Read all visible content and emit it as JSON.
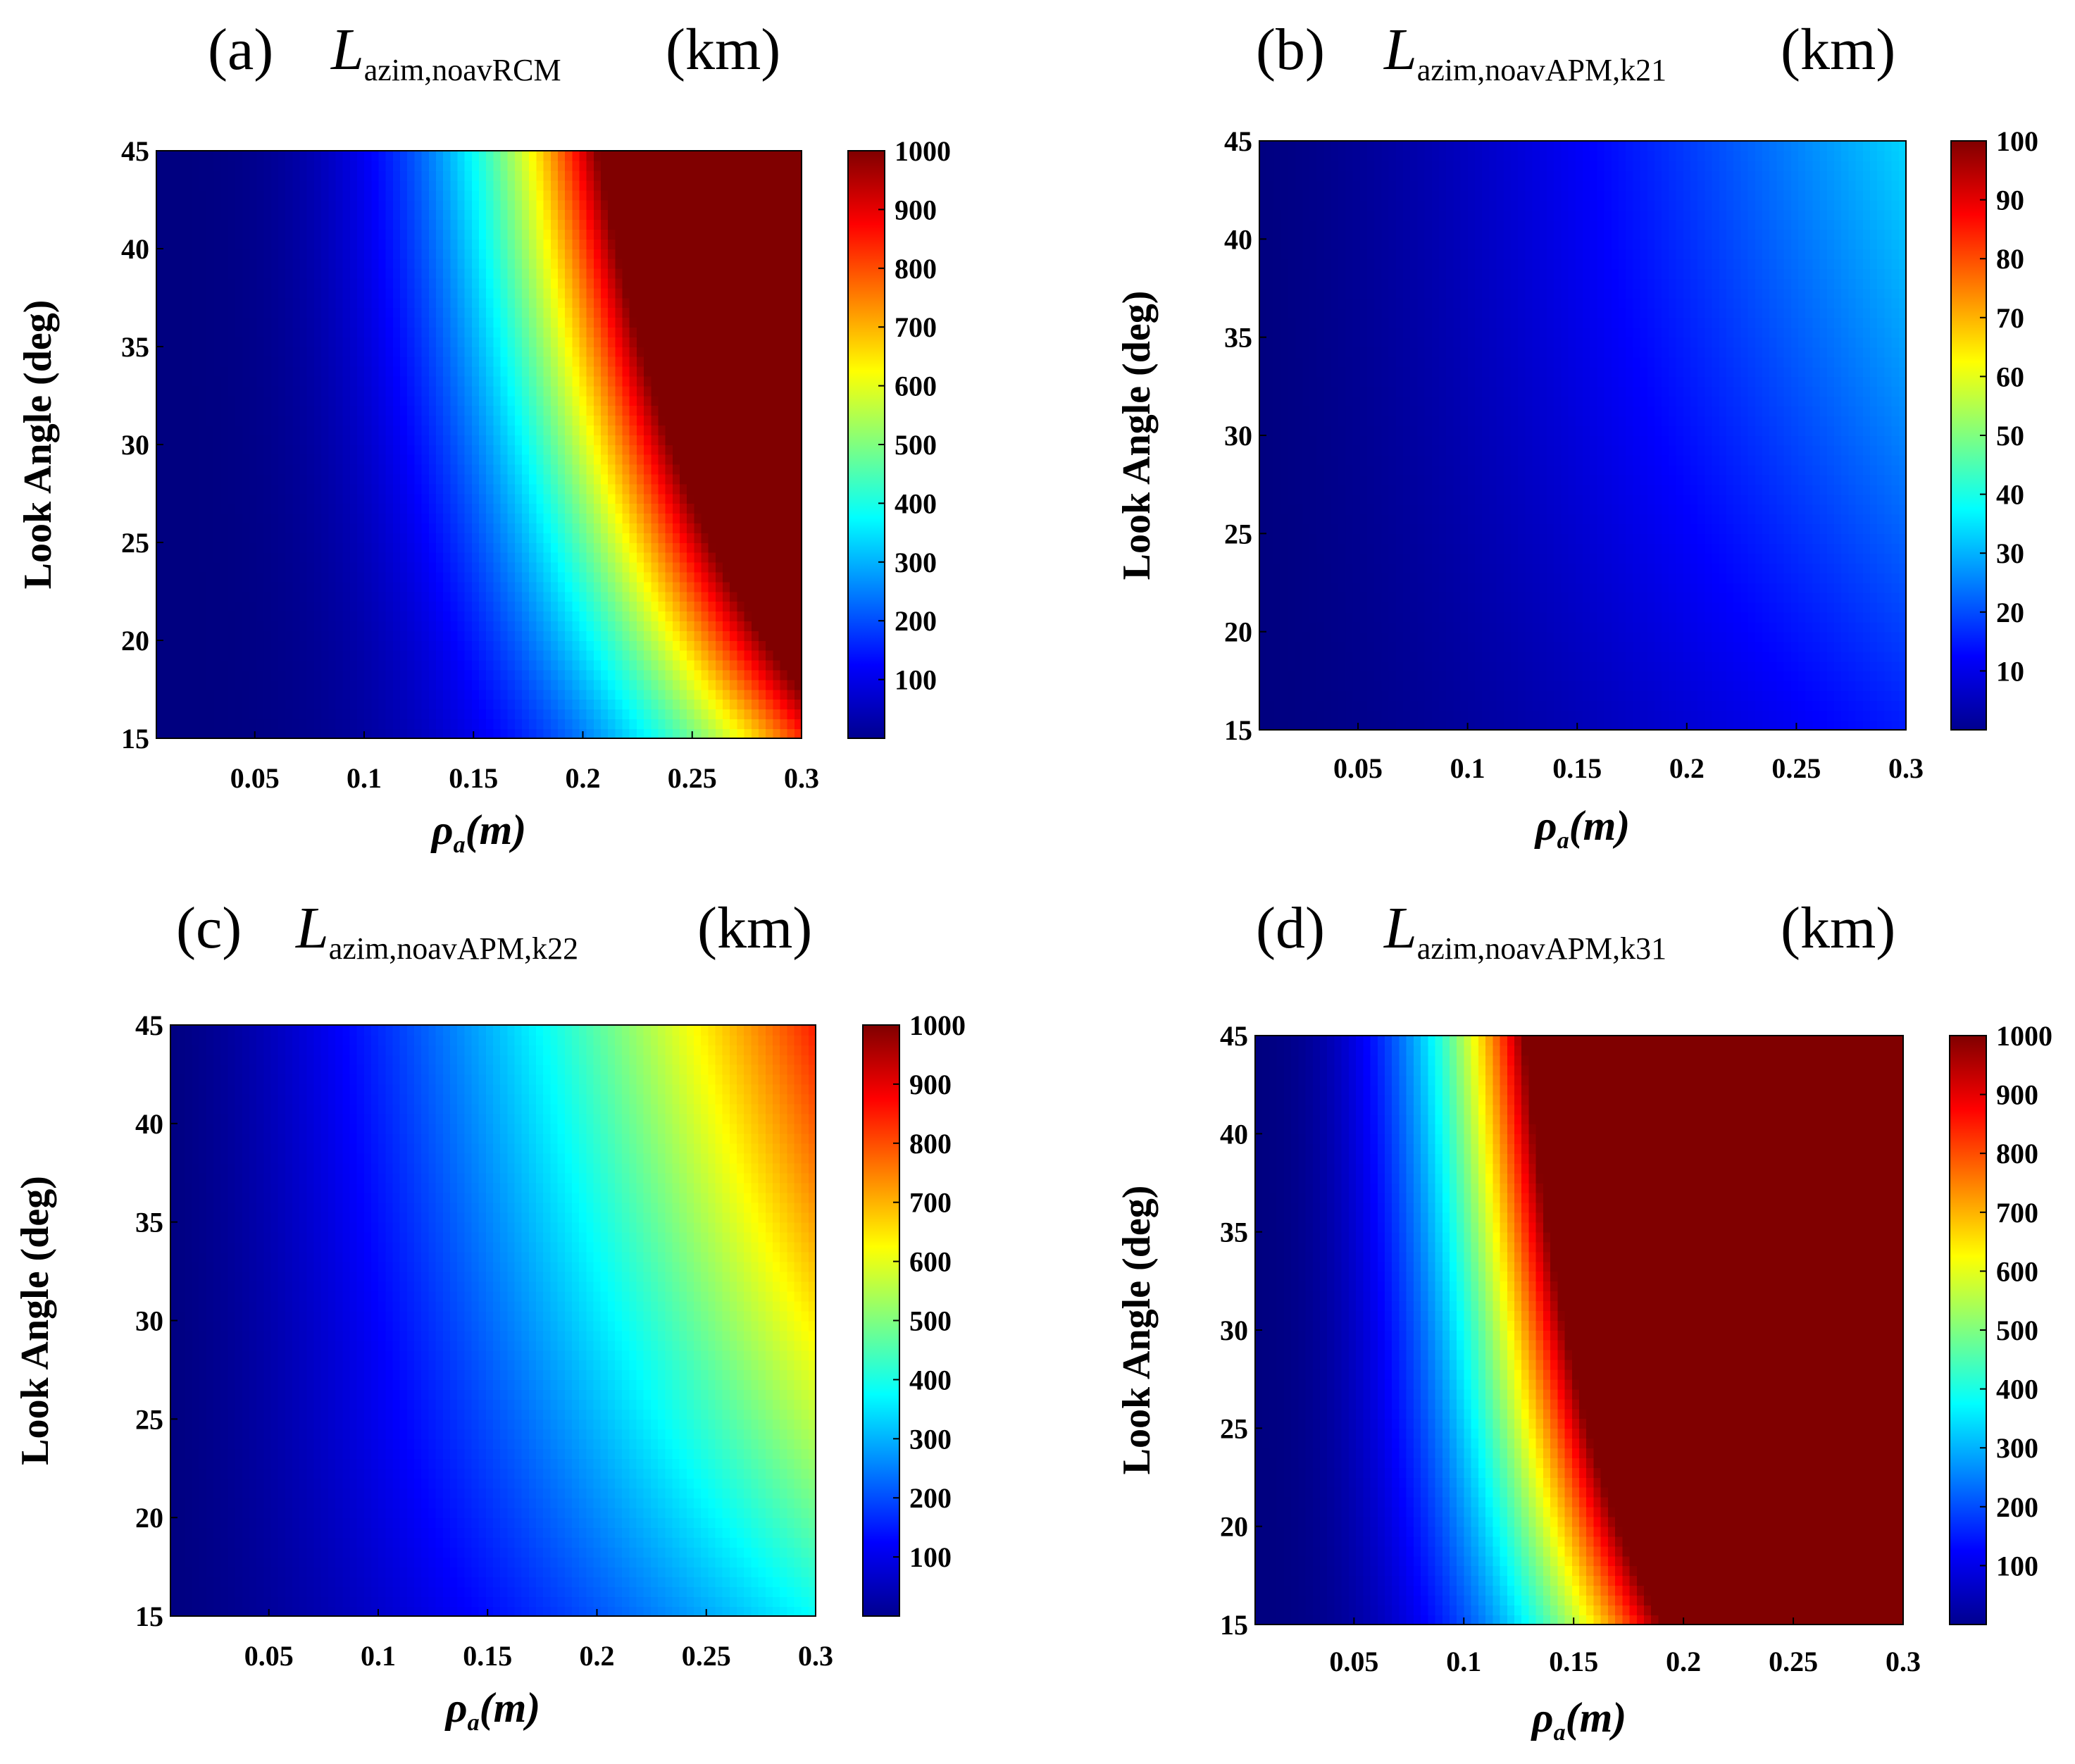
{
  "figure": {
    "colormap_stops": [
      "#00008f",
      "#0000ff",
      "#00ffff",
      "#ffff00",
      "#ff0000",
      "#800000"
    ]
  },
  "chart_data": [
    {
      "type": "heatmap",
      "label": "(a)",
      "title_symbol": "L",
      "title_subscript": "azim,noavRCM",
      "title_unit": "(km)",
      "xlabel_symbol": "ρ",
      "xlabel_subscript": "a",
      "xlabel_unit": "(m)",
      "ylabel": "Look Angle (deg)",
      "xlim": [
        0.005,
        0.3
      ],
      "ylim": [
        15,
        45
      ],
      "xticks": [
        "0.05",
        "0.1",
        "0.15",
        "0.2",
        "0.25",
        "0.3"
      ],
      "yticks": [
        "15",
        "20",
        "25",
        "30",
        "35",
        "40",
        "45"
      ],
      "colorbar_range": [
        0,
        1000
      ],
      "colorbar_ticks": [
        "100",
        "200",
        "300",
        "400",
        "500",
        "600",
        "700",
        "800",
        "900",
        "1000"
      ],
      "model": {
        "rho_ref": 0.24,
        "sin_ref": 0.5,
        "exponent_rho": 3,
        "exponent_angle": 1.3,
        "at_ref": 1000,
        "max_value": 1000
      }
    },
    {
      "type": "heatmap",
      "label": "(b)",
      "title_symbol": "L",
      "title_subscript": "azim,noavAPM,k21",
      "title_unit": "(km)",
      "xlabel_symbol": "ρ",
      "xlabel_subscript": "a",
      "xlabel_unit": "(m)",
      "ylabel": "Look Angle (deg)",
      "xlim": [
        0.005,
        0.3
      ],
      "ylim": [
        15,
        45
      ],
      "xticks": [
        "0.05",
        "0.1",
        "0.15",
        "0.2",
        "0.25",
        "0.3"
      ],
      "yticks": [
        "15",
        "20",
        "25",
        "30",
        "35",
        "40",
        "45"
      ],
      "colorbar_range": [
        0,
        100
      ],
      "colorbar_ticks": [
        "10",
        "20",
        "30",
        "40",
        "50",
        "60",
        "70",
        "80",
        "90",
        "100"
      ],
      "model": {
        "rho_ref": 0.3,
        "sin_ref": 0.259,
        "exponent_rho": 1.5,
        "exponent_angle": 0.8,
        "at_ref": 15,
        "max_value": 100
      }
    },
    {
      "type": "heatmap",
      "label": "(c)",
      "title_symbol": "L",
      "title_subscript": "azim,noavAPM,k22",
      "title_unit": "(km)",
      "xlabel_symbol": "ρ",
      "xlabel_subscript": "a",
      "xlabel_unit": "(m)",
      "ylabel": "Look Angle (deg)",
      "xlim": [
        0.005,
        0.3
      ],
      "ylim": [
        15,
        45
      ],
      "xticks": [
        "0.05",
        "0.1",
        "0.15",
        "0.2",
        "0.25",
        "0.3"
      ],
      "yticks": [
        "15",
        "20",
        "25",
        "30",
        "35",
        "40",
        "45"
      ],
      "colorbar_range": [
        0,
        1000
      ],
      "colorbar_ticks": [
        "100",
        "200",
        "300",
        "400",
        "500",
        "600",
        "700",
        "800",
        "900",
        "1000"
      ],
      "model": {
        "rho_ref": 0.3,
        "sin_ref": 0.259,
        "exponent_rho": 1.5,
        "exponent_angle": 0.8,
        "at_ref": 380,
        "max_value": 1000
      }
    },
    {
      "type": "heatmap",
      "label": "(d)",
      "title_symbol": "L",
      "title_subscript": "azim,noavAPM,k31",
      "title_unit": "(km)",
      "xlabel_symbol": "ρ",
      "xlabel_subscript": "a",
      "xlabel_unit": "(m)",
      "ylabel": "Look Angle (deg)",
      "xlim": [
        0.005,
        0.3
      ],
      "ylim": [
        15,
        45
      ],
      "xticks": [
        "0.05",
        "0.1",
        "0.15",
        "0.2",
        "0.25",
        "0.3"
      ],
      "yticks": [
        "15",
        "20",
        "25",
        "30",
        "35",
        "40",
        "45"
      ],
      "colorbar_range": [
        0,
        1000
      ],
      "colorbar_ticks": [
        "100",
        "200",
        "300",
        "400",
        "500",
        "600",
        "700",
        "800",
        "900",
        "1000"
      ],
      "model": {
        "rho_ref": 0.19,
        "sin_ref": 0.259,
        "exponent_rho": 2.5,
        "exponent_angle": 1.0,
        "at_ref": 1000,
        "max_value": 1000
      }
    }
  ]
}
